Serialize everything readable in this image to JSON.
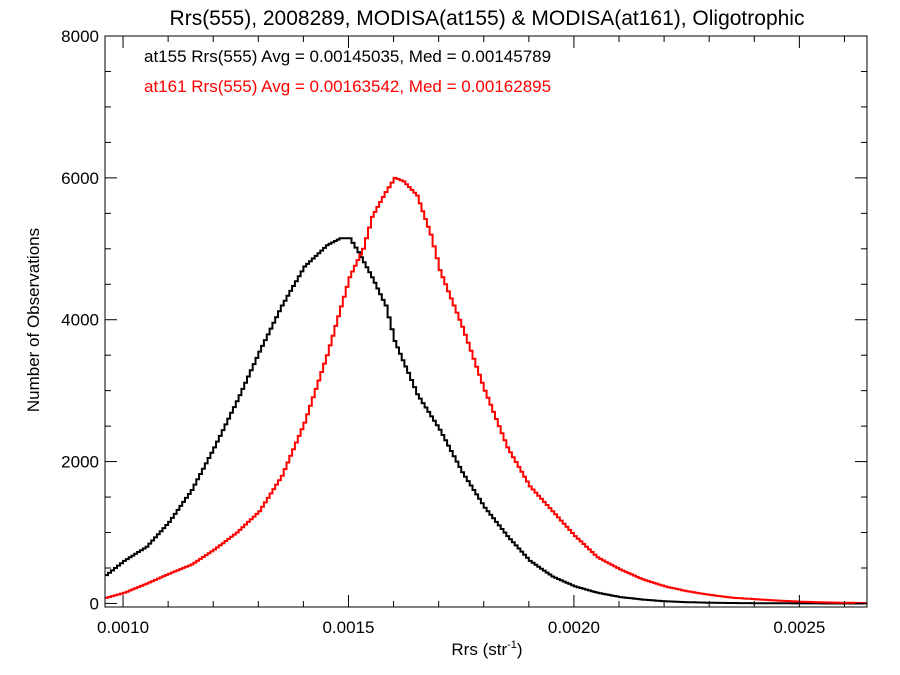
{
  "chart_data": {
    "type": "line",
    "title": "Rrs(555), 2008289, MODISA(at155) & MODISA(at161), Oligotrophic",
    "xlabel": "Rrs (str",
    "xlabel_sup": "-1",
    "xlabel_end": ")",
    "ylabel": "Number of Observations",
    "xlim": [
      0.00096,
      0.00265
    ],
    "ylim": [
      -50,
      8000
    ],
    "xticks": [
      {
        "value": 0.001,
        "label": "0.0010"
      },
      {
        "value": 0.0015,
        "label": "0.0015"
      },
      {
        "value": 0.002,
        "label": "0.0020"
      },
      {
        "value": 0.0025,
        "label": "0.0025"
      }
    ],
    "yticks": [
      {
        "value": 0,
        "label": "0"
      },
      {
        "value": 2000,
        "label": "2000"
      },
      {
        "value": 4000,
        "label": "4000"
      },
      {
        "value": 6000,
        "label": "6000"
      },
      {
        "value": 8000,
        "label": "8000"
      }
    ],
    "grid": false,
    "legend_placement": "top-left",
    "series": [
      {
        "name": "at155 Rrs(555) Avg = 0.00145035, Med = 0.00145789",
        "color": "#000000",
        "style": "histogram-step",
        "x": [
          0.00096,
          0.001,
          0.00105,
          0.0011,
          0.00115,
          0.0012,
          0.00125,
          0.0013,
          0.00135,
          0.0014,
          0.00145,
          0.00148,
          0.0015,
          0.00152,
          0.00155,
          0.00158,
          0.0016,
          0.00163,
          0.00165,
          0.0017,
          0.00175,
          0.0018,
          0.00185,
          0.0019,
          0.00195,
          0.002,
          0.00205,
          0.0021,
          0.00215,
          0.0022,
          0.00225,
          0.0023,
          0.00235,
          0.0024,
          0.00245,
          0.0025,
          0.00255,
          0.0026,
          0.00265
        ],
        "y": [
          400,
          600,
          800,
          1150,
          1600,
          2200,
          2850,
          3550,
          4200,
          4750,
          5050,
          5150,
          5150,
          4950,
          4600,
          4200,
          3700,
          3250,
          2950,
          2450,
          1850,
          1350,
          950,
          600,
          380,
          240,
          150,
          90,
          55,
          30,
          18,
          10,
          6,
          4,
          2,
          1,
          0,
          0,
          0
        ]
      },
      {
        "name": "at161 Rrs(555) Avg = 0.00163542, Med = 0.00162895",
        "color": "#ff0000",
        "style": "histogram-step",
        "x": [
          0.00096,
          0.001,
          0.00105,
          0.0011,
          0.00115,
          0.0012,
          0.00125,
          0.0013,
          0.00135,
          0.0014,
          0.00145,
          0.0015,
          0.00153,
          0.00155,
          0.00158,
          0.0016,
          0.00162,
          0.00165,
          0.00168,
          0.0017,
          0.00175,
          0.0018,
          0.00185,
          0.0019,
          0.00195,
          0.002,
          0.00205,
          0.0021,
          0.00215,
          0.0022,
          0.00225,
          0.0023,
          0.00235,
          0.0024,
          0.00245,
          0.0025,
          0.00255,
          0.0026,
          0.00265
        ],
        "y": [
          80,
          150,
          280,
          420,
          550,
          760,
          1000,
          1300,
          1800,
          2550,
          3500,
          4600,
          5000,
          5450,
          5800,
          6000,
          5950,
          5750,
          5200,
          4700,
          3900,
          3000,
          2200,
          1650,
          1300,
          950,
          650,
          480,
          340,
          240,
          170,
          120,
          80,
          60,
          40,
          25,
          15,
          10,
          5
        ]
      }
    ]
  }
}
